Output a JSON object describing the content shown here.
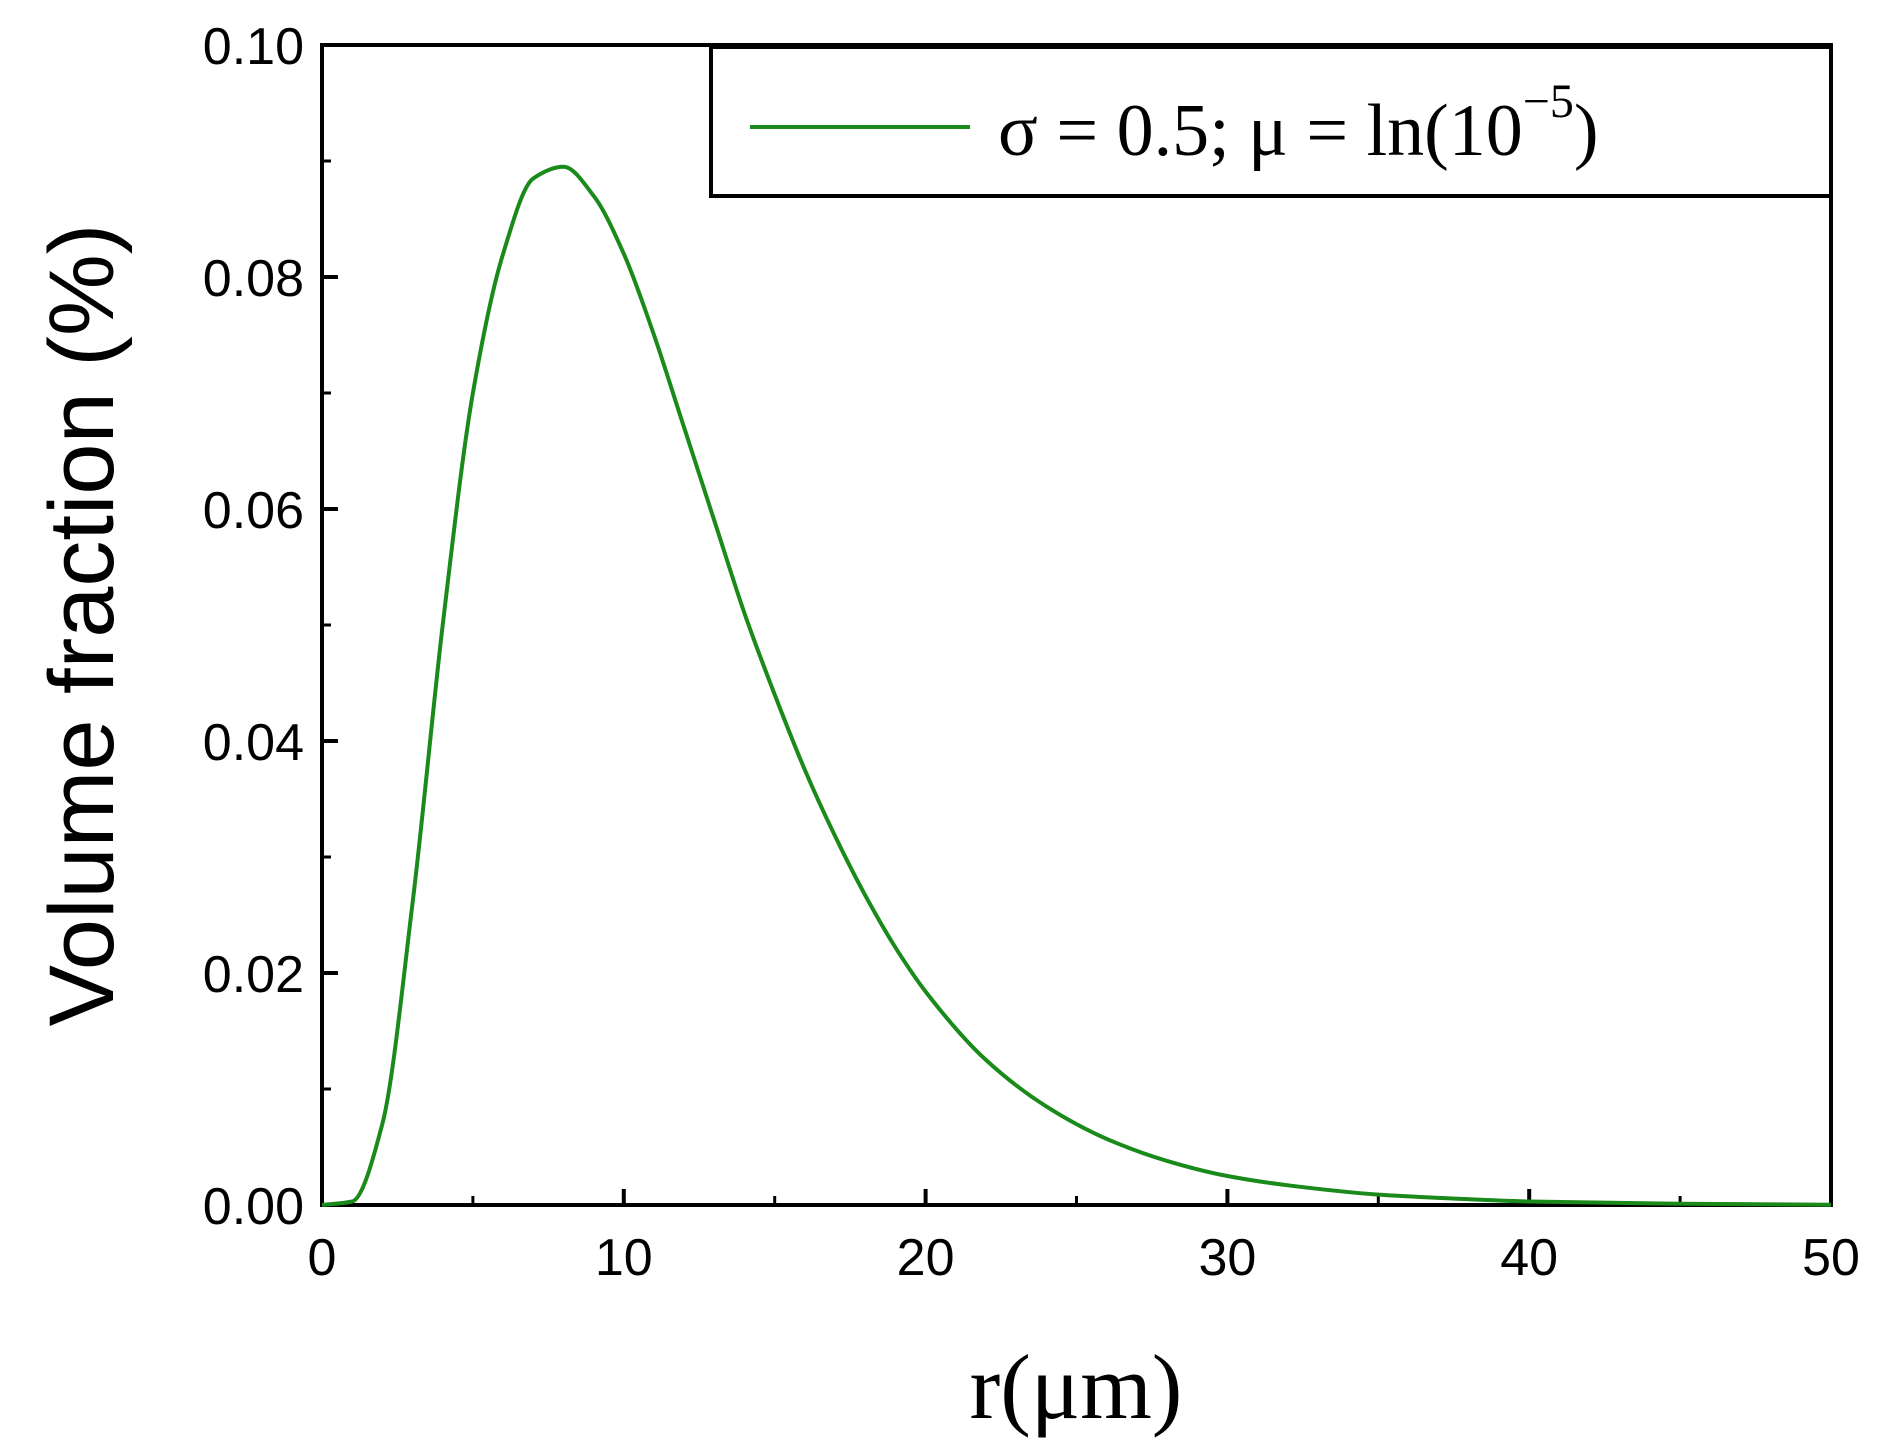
{
  "chart_data": {
    "type": "line",
    "title": "",
    "xlabel": "r(μm)",
    "ylabel": "Volume fraction (%)",
    "xlim": [
      0,
      50
    ],
    "ylim": [
      0,
      0.1
    ],
    "x_ticks": [
      "0",
      "10",
      "20",
      "30",
      "40",
      "50"
    ],
    "y_ticks": [
      "0.00",
      "0.02",
      "0.04",
      "0.06",
      "0.08",
      "0.10"
    ],
    "grid": false,
    "legend_position": "top-right",
    "series": [
      {
        "name": "σ = 0.5; μ = ln(10",
        "name_superscript": "−5",
        "name_suffix": ")",
        "color": "#1a8a1a",
        "x": [
          0,
          1,
          2,
          3,
          4,
          5,
          6,
          7,
          8,
          9,
          10,
          11,
          12,
          13,
          14,
          15,
          16,
          17,
          18,
          19,
          20,
          22,
          24,
          26,
          28,
          30,
          32,
          35,
          38,
          40,
          45,
          50
        ],
        "y": [
          0,
          0.0003,
          0.007,
          0.026,
          0.05,
          0.07,
          0.082,
          0.0885,
          0.0895,
          0.087,
          0.082,
          0.075,
          0.067,
          0.059,
          0.051,
          0.044,
          0.0375,
          0.0318,
          0.0267,
          0.0222,
          0.0184,
          0.0125,
          0.0085,
          0.0057,
          0.0038,
          0.0025,
          0.0017,
          0.0009,
          0.0005,
          0.0003,
          0.0001,
          3e-05
        ]
      }
    ]
  }
}
